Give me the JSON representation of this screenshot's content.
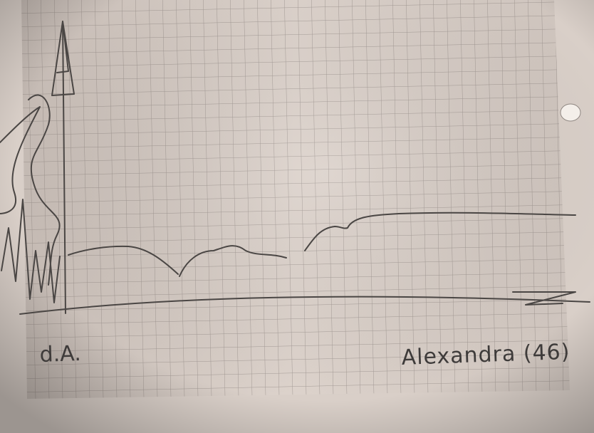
{
  "photo": {
    "kind": "photograph of a hand-drawn sketch on grid paper",
    "ink_color": "#4a4644",
    "paper_color": "#d9cfc8",
    "grid_color": "#a49b96"
  },
  "sketch": {
    "caption": "Alexandra (46)",
    "axis_origin_label": "d.A."
  }
}
